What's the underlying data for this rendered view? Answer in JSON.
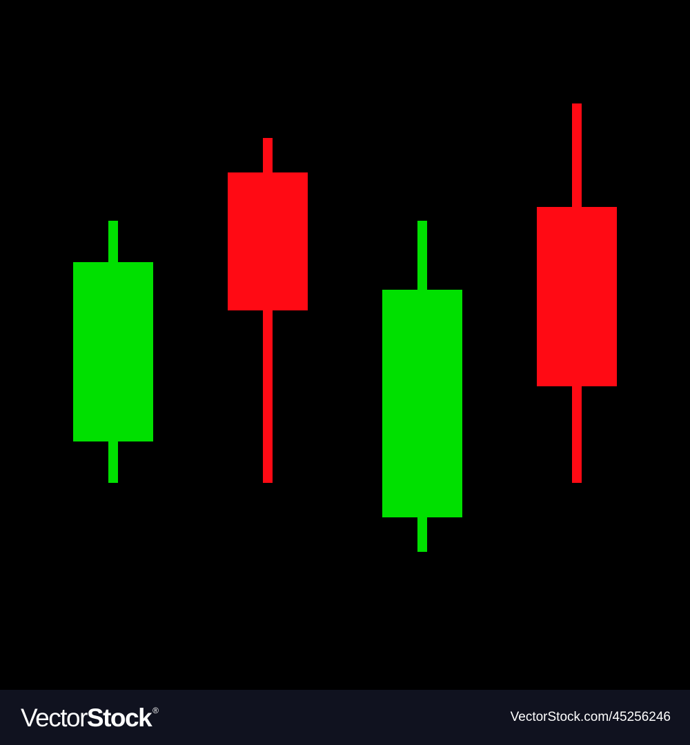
{
  "chart_data": {
    "type": "candlestick",
    "title": "",
    "xlabel": "",
    "ylabel": "",
    "grid": false,
    "legend": "none",
    "ylim": [
      0,
      100
    ],
    "candles": [
      {
        "direction": "up",
        "open": 36,
        "close": 62,
        "high": 68,
        "low": 30
      },
      {
        "direction": "down",
        "open": 75,
        "close": 55,
        "high": 80,
        "low": 30
      },
      {
        "direction": "up",
        "open": 25,
        "close": 58,
        "high": 68,
        "low": 20
      },
      {
        "direction": "down",
        "open": 70,
        "close": 44,
        "high": 85,
        "low": 30
      }
    ],
    "colors": {
      "up": "#00e000",
      "down": "#ff0a14",
      "background": "#000000"
    }
  },
  "footer": {
    "brand_part_1": "Vector",
    "brand_part_2": "Stock",
    "brand_registered": "®",
    "image_credit": "VectorStock.com/45256246",
    "background_color": "#10121f"
  }
}
